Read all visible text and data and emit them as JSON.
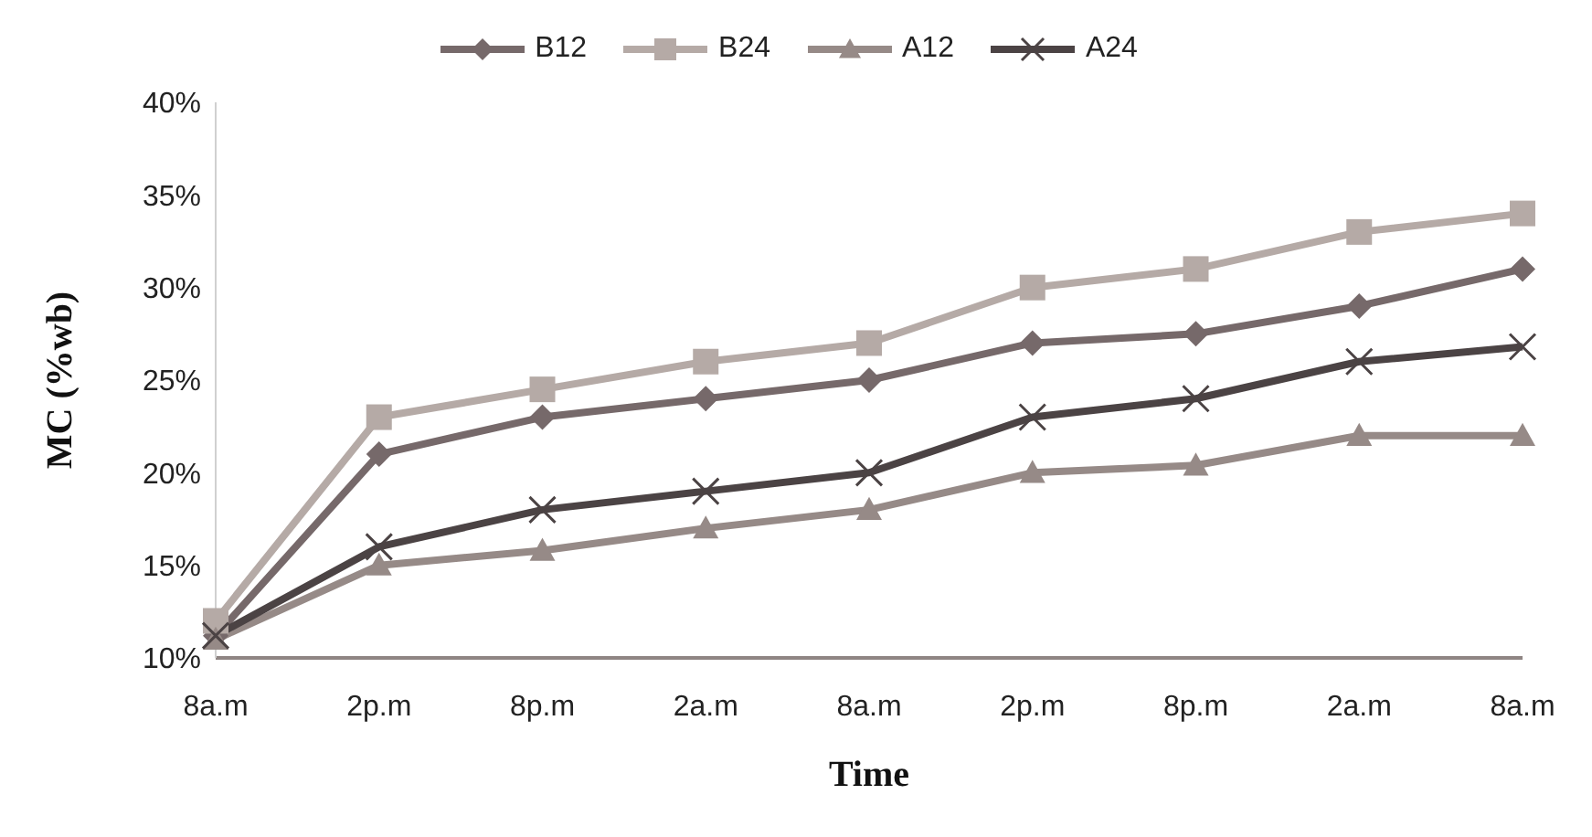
{
  "chart_data": {
    "type": "line",
    "xlabel": "Time",
    "ylabel": "MC (%wb)",
    "categories": [
      "8a.m",
      "2p.m",
      "8p.m",
      "2a.m",
      "8a.m",
      "2p.m",
      "8p.m",
      "2a.m",
      "8a.m"
    ],
    "series": [
      {
        "name": "B12",
        "color": "#76696a",
        "marker": "diamond",
        "values": [
          0.112,
          0.21,
          0.23,
          0.24,
          0.25,
          0.27,
          0.275,
          0.29,
          0.31
        ]
      },
      {
        "name": "B24",
        "color": "#b5aaa6",
        "marker": "square",
        "values": [
          0.12,
          0.23,
          0.245,
          0.26,
          0.27,
          0.3,
          0.31,
          0.33,
          0.34
        ]
      },
      {
        "name": "A12",
        "color": "#968a87",
        "marker": "triangle",
        "values": [
          0.11,
          0.15,
          0.158,
          0.17,
          0.18,
          0.2,
          0.204,
          0.22,
          0.22
        ]
      },
      {
        "name": "A24",
        "color": "#4b4344",
        "marker": "cross",
        "values": [
          0.112,
          0.16,
          0.18,
          0.19,
          0.2,
          0.23,
          0.24,
          0.26,
          0.268
        ]
      }
    ],
    "ylim": [
      0.1,
      0.4
    ],
    "yticks": [
      {
        "value": 0.1,
        "label": "10%"
      },
      {
        "value": 0.15,
        "label": "15%"
      },
      {
        "value": 0.2,
        "label": "20%"
      },
      {
        "value": 0.25,
        "label": "25%"
      },
      {
        "value": 0.3,
        "label": "30%"
      },
      {
        "value": 0.35,
        "label": "35%"
      },
      {
        "value": 0.4,
        "label": "40%"
      }
    ],
    "grid": false,
    "legend": "top",
    "line_style": "solid"
  }
}
